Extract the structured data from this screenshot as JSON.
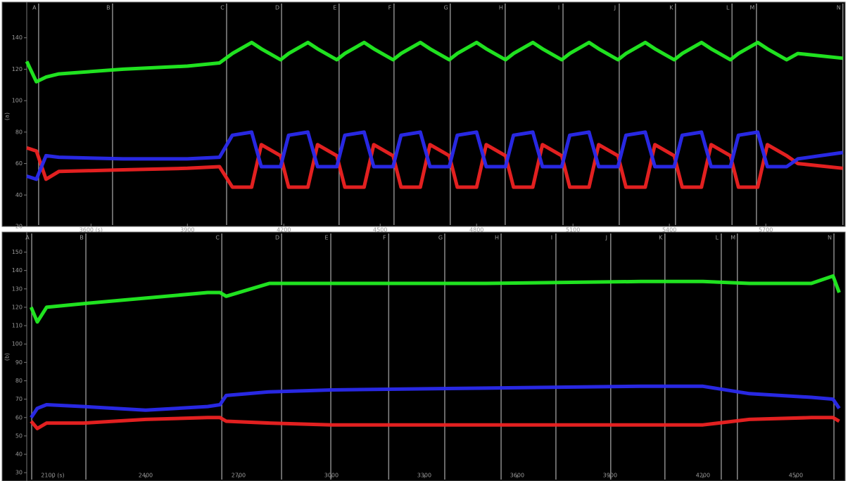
{
  "chart_data": [
    {
      "type": "line",
      "y_label": "(a)",
      "xlim": [
        3400,
        5945
      ],
      "ylim": [
        20,
        160
      ],
      "xticks": [
        {
          "value": 3600,
          "label": "3600 (s)"
        },
        3900,
        4200,
        4500,
        4800,
        5100,
        5400,
        5700
      ],
      "yticks": [
        20,
        40,
        60,
        80,
        100,
        120,
        140
      ],
      "markers": [
        {
          "label": "A",
          "x": 3437
        },
        {
          "label": "B",
          "x": 3667
        },
        {
          "label": "C",
          "x": 4022
        },
        {
          "label": "D",
          "x": 4193
        },
        {
          "label": "E",
          "x": 4372
        },
        {
          "label": "F",
          "x": 4543
        },
        {
          "label": "G",
          "x": 4718
        },
        {
          "label": "H",
          "x": 4889
        },
        {
          "label": "I",
          "x": 5069
        },
        {
          "label": "J",
          "x": 5244
        },
        {
          "label": "K",
          "x": 5419
        },
        {
          "label": "L",
          "x": 5595
        },
        {
          "label": "M",
          "x": 5671
        },
        {
          "label": "N",
          "x": 5940
        }
      ],
      "x": [
        3400,
        3430,
        3460,
        3500,
        3700,
        3900,
        4000,
        4040,
        4100,
        4130,
        4190,
        4215,
        4275,
        4305,
        4365,
        4390,
        4450,
        4480,
        4540,
        4565,
        4625,
        4655,
        4715,
        4740,
        4800,
        4830,
        4890,
        4915,
        4975,
        5005,
        5065,
        5090,
        5150,
        5180,
        5240,
        5265,
        5325,
        5355,
        5415,
        5440,
        5500,
        5530,
        5590,
        5615,
        5675,
        5705,
        5765,
        5800,
        5940
      ],
      "series": [
        {
          "color": "#22ee22",
          "values": [
            125,
            112,
            115,
            117,
            120,
            122,
            124,
            130,
            137,
            133,
            126,
            130,
            137,
            133,
            126,
            130,
            137,
            133,
            126,
            130,
            137,
            133,
            126,
            130,
            137,
            133,
            126,
            130,
            137,
            133,
            126,
            130,
            137,
            133,
            126,
            130,
            137,
            133,
            126,
            130,
            137,
            133,
            126,
            130,
            137,
            133,
            126,
            130,
            127
          ]
        },
        {
          "color": "#ee2222",
          "values": [
            70,
            68,
            50,
            55,
            56,
            57,
            58,
            45,
            45,
            72,
            65,
            45,
            45,
            72,
            65,
            45,
            45,
            72,
            65,
            45,
            45,
            72,
            65,
            45,
            45,
            72,
            65,
            45,
            45,
            72,
            65,
            45,
            45,
            72,
            65,
            45,
            45,
            72,
            65,
            45,
            45,
            72,
            65,
            45,
            45,
            72,
            65,
            60,
            57
          ]
        },
        {
          "color": "#2a2aee",
          "values": [
            52,
            50,
            65,
            64,
            63,
            63,
            64,
            78,
            80,
            58,
            58,
            78,
            80,
            58,
            58,
            78,
            80,
            58,
            58,
            78,
            80,
            58,
            58,
            78,
            80,
            58,
            58,
            78,
            80,
            58,
            58,
            78,
            80,
            58,
            58,
            78,
            80,
            58,
            58,
            78,
            80,
            58,
            58,
            78,
            80,
            58,
            58,
            63,
            67
          ]
        }
      ]
    },
    {
      "type": "line",
      "y_label": "(b)",
      "xlim": [
        2016,
        4657
      ],
      "ylim": [
        27,
        159
      ],
      "xticks": [
        {
          "value": 2100,
          "label": "2100 (s)"
        },
        2400,
        2700,
        3000,
        3300,
        3600,
        3900,
        4200,
        4500
      ],
      "yticks": [
        30,
        40,
        50,
        60,
        70,
        80,
        90,
        100,
        110,
        120,
        130,
        140,
        150
      ],
      "markers": [
        {
          "label": "A",
          "x": 2032
        },
        {
          "label": "B",
          "x": 2207
        },
        {
          "label": "C",
          "x": 2646
        },
        {
          "label": "D",
          "x": 2839
        },
        {
          "label": "E",
          "x": 2998
        },
        {
          "label": "F",
          "x": 3185
        },
        {
          "label": "G",
          "x": 3366
        },
        {
          "label": "H",
          "x": 3548
        },
        {
          "label": "I",
          "x": 3725
        },
        {
          "label": "J",
          "x": 3902
        },
        {
          "label": "K",
          "x": 4077
        },
        {
          "label": "L",
          "x": 4259
        },
        {
          "label": "M",
          "x": 4311
        },
        {
          "label": "N",
          "x": 4623
        }
      ],
      "x": [
        2030,
        2050,
        2080,
        2200,
        2400,
        2600,
        2640,
        2660,
        2800,
        3000,
        3500,
        4000,
        4200,
        4350,
        4550,
        4620,
        4640
      ],
      "series": [
        {
          "color": "#22ee22",
          "values": [
            120,
            112,
            120,
            122,
            125,
            128,
            128,
            126,
            133,
            133,
            133,
            134,
            134,
            133,
            133,
            137,
            128
          ]
        },
        {
          "color": "#ee2222",
          "values": [
            58,
            54,
            57,
            57,
            59,
            60,
            60,
            58,
            57,
            56,
            56,
            56,
            56,
            59,
            60,
            60,
            58
          ]
        },
        {
          "color": "#2a2aee",
          "values": [
            60,
            65,
            67,
            66,
            64,
            66,
            67,
            72,
            74,
            75,
            76,
            77,
            77,
            73,
            71,
            70,
            65
          ]
        }
      ]
    }
  ]
}
